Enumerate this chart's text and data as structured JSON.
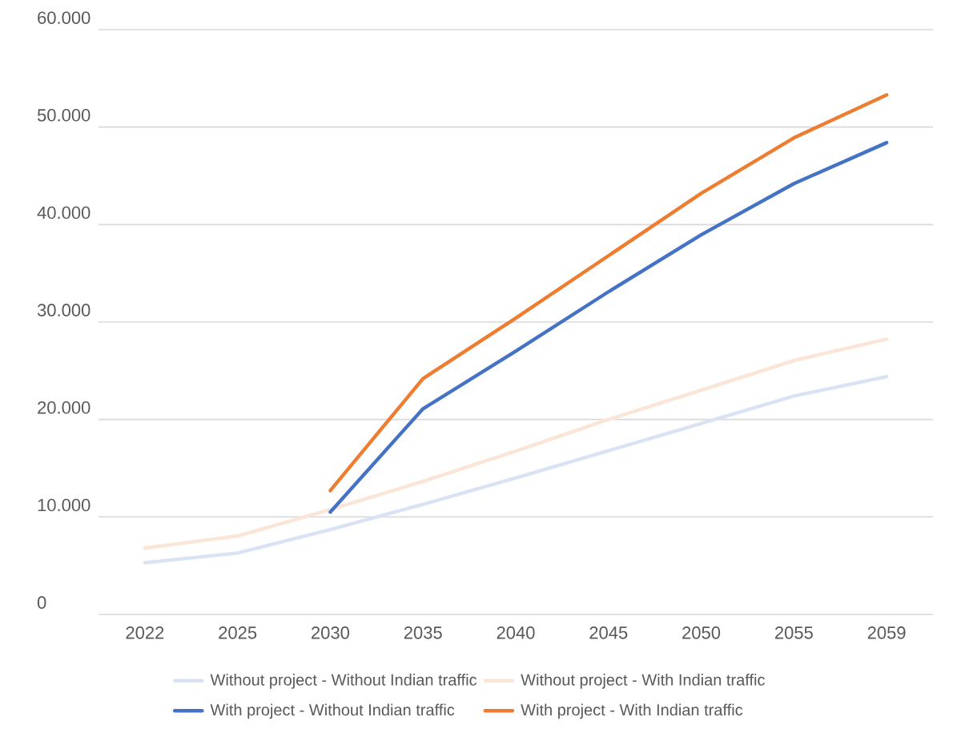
{
  "chart_data": {
    "type": "line",
    "categories": [
      "2022",
      "2025",
      "2030",
      "2035",
      "2040",
      "2045",
      "2050",
      "2055",
      "2059"
    ],
    "series": [
      {
        "name": "Without project - Without Indian traffic",
        "color": "#dae3f3",
        "values": [
          5300,
          6300,
          8700,
          11300,
          14000,
          16800,
          19600,
          22400,
          24400
        ]
      },
      {
        "name": "Without project - With Indian traffic",
        "color": "#fbe5d6",
        "values": [
          6800,
          8050,
          10750,
          13650,
          16750,
          20000,
          23000,
          26050,
          28250
        ]
      },
      {
        "name": "With project - Without Indian traffic",
        "color": "#4472c4",
        "values": [
          null,
          null,
          10500,
          21100,
          27000,
          33100,
          38950,
          44200,
          48400
        ]
      },
      {
        "name": "With project - With Indian traffic",
        "color": "#ed7d31",
        "values": [
          null,
          null,
          12700,
          24200,
          30400,
          36800,
          43200,
          48900,
          53300
        ]
      }
    ],
    "ylim": [
      0,
      60000
    ],
    "yticks": [
      0,
      {
        "value": 10000,
        "label": "10.000"
      },
      {
        "value": 20000,
        "label": "20.000"
      },
      {
        "value": 30000,
        "label": "30.000"
      },
      {
        "value": 40000,
        "label": "40.000"
      },
      {
        "value": 50000,
        "label": "50.000"
      },
      {
        "value": 60000,
        "label": "60.000"
      }
    ],
    "grid": "y",
    "legend": "bottom",
    "line_style": "solid"
  }
}
